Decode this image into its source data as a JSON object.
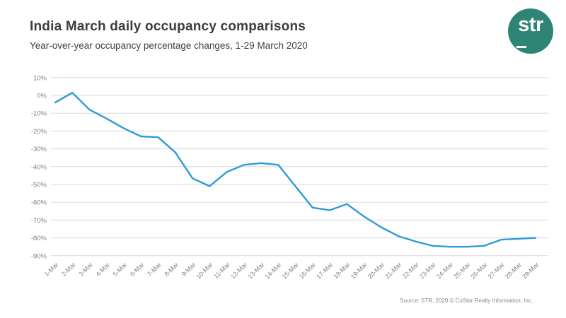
{
  "header": {
    "title": "India March daily occupancy comparisons",
    "subtitle": "Year-over-year occupancy percentage changes, 1-29 March 2020"
  },
  "logo": {
    "text": "str",
    "color": "#2E8575"
  },
  "chart_data": {
    "type": "line",
    "title": "India March daily occupancy comparisons",
    "subtitle": "Year-over-year occupancy percentage changes, 1-29 March 2020",
    "xlabel": "",
    "ylabel": "",
    "categories": [
      "1-Mar",
      "2-Mar",
      "3-Mar",
      "4-Mar",
      "5-Mar",
      "6-Mar",
      "7-Mar",
      "8-Mar",
      "9-Mar",
      "10-Mar",
      "11-Mar",
      "12-Mar",
      "13-Mar",
      "14-Mar",
      "15-Mar",
      "16-Mar",
      "17-Mar",
      "18-Mar",
      "19-Mar",
      "20-Mar",
      "21-Mar",
      "22-Mar",
      "23-Mar",
      "24-Mar",
      "25-Mar",
      "26-Mar",
      "27-Mar",
      "28-Mar",
      "29-Mar"
    ],
    "values": [
      -4,
      1.5,
      -8,
      -13,
      -18.5,
      -23,
      -23.5,
      -32,
      -46.5,
      -51,
      -43,
      -39,
      -38,
      -39,
      -51,
      -63,
      -64.5,
      -61,
      -68,
      -74,
      -79,
      -82,
      -84.5,
      -85,
      -85,
      -84.5,
      -81,
      -80.5,
      -80
    ],
    "ylim": [
      -90,
      10
    ],
    "y_ticks": [
      10,
      0,
      -10,
      -20,
      -30,
      -40,
      -50,
      -60,
      -70,
      -80,
      -90
    ],
    "y_tick_labels": [
      "10%",
      "0%",
      "-10%",
      "-20%",
      "-30%",
      "-40%",
      "-50%",
      "-60%",
      "-70%",
      "-80%",
      "-90%"
    ],
    "grid": true,
    "legend": "none",
    "line_color": "#2E9BD6",
    "grid_color": "#d9d9d9",
    "tick_color": "#808080"
  },
  "footer": {
    "source": "Source: STR, 2020 © CoStar Realty Information, Inc."
  }
}
